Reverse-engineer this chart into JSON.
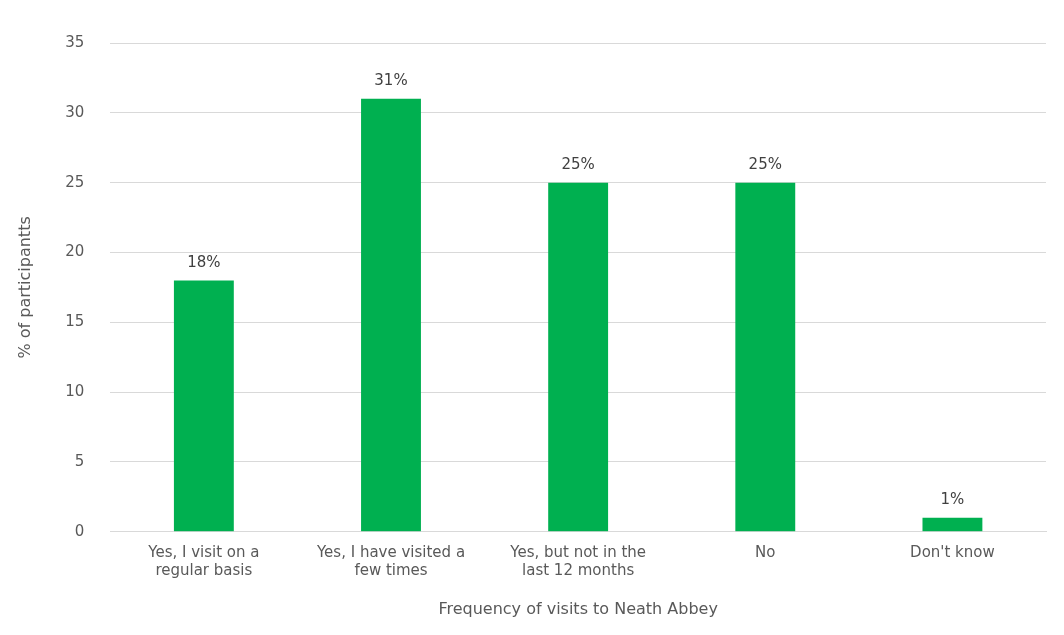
{
  "chart_data": {
    "type": "bar",
    "xlabel": "Frequency of visits to Neath Abbey",
    "ylabel": "% of participantts",
    "categories": [
      "Yes, I visit on a regular basis",
      "Yes, I have visited a few times",
      "Yes, but not in the last 12 months",
      "No",
      "Don't know"
    ],
    "values": [
      18,
      31,
      25,
      25,
      1
    ],
    "value_labels": [
      "18%",
      "31%",
      "25%",
      "25%",
      "1%"
    ],
    "color": "#00b050",
    "ylim": [
      0,
      35
    ],
    "yticks": [
      0,
      5,
      10,
      15,
      20,
      25,
      30,
      35
    ],
    "grid": "y",
    "legend": false
  }
}
